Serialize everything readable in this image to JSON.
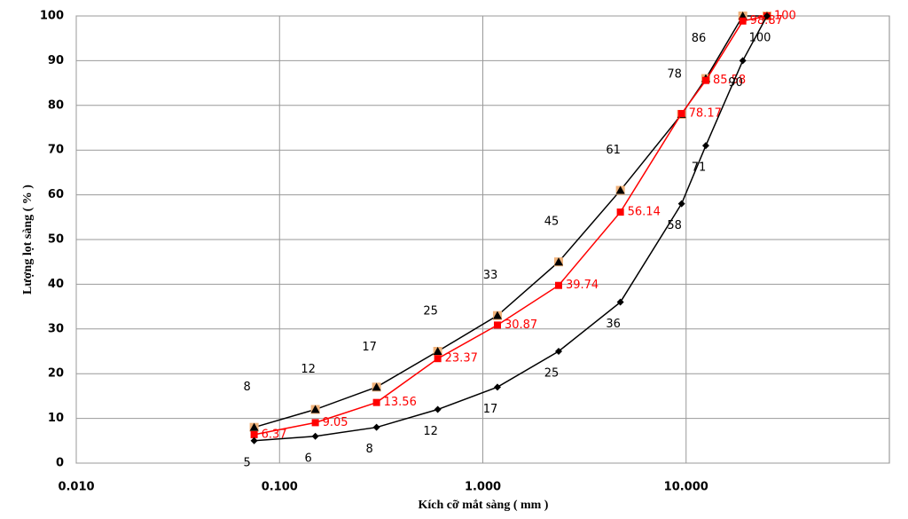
{
  "chart_data": {
    "type": "line",
    "x_label": "Kích cỡ mắt sàng ( mm )",
    "y_label": "Lượng lọt sàng ( % )",
    "x": [
      0.075,
      0.15,
      0.3,
      0.6,
      1.18,
      2.36,
      4.75,
      9.5,
      12.5,
      19,
      25
    ],
    "series": [
      {
        "color": "#000000",
        "marker": "triangle",
        "label_position": "above",
        "values": [
          8,
          12,
          17,
          25,
          33,
          45,
          61,
          78,
          86,
          100,
          100
        ]
      },
      {
        "color": "#ff0000",
        "marker": "square",
        "label_position": "right",
        "values": [
          6.37,
          9.05,
          13.56,
          23.37,
          30.87,
          39.74,
          56.14,
          78.17,
          85.58,
          98.87,
          100
        ]
      },
      {
        "color": "#000000",
        "marker": "diamond",
        "label_position": "below",
        "values": [
          5,
          6,
          8,
          12,
          17,
          25,
          36,
          58,
          71,
          90,
          100
        ]
      }
    ],
    "xlog": true,
    "xlim": [
      0.01,
      100
    ],
    "xticks": [
      {
        "value": 0.01,
        "label": "0.010"
      },
      {
        "value": 0.1,
        "label": "0.100"
      },
      {
        "value": 1,
        "label": "1.000"
      },
      {
        "value": 10,
        "label": "10.000"
      }
    ],
    "ylim": [
      0,
      100
    ],
    "yticks": [
      0,
      10,
      20,
      30,
      40,
      50,
      60,
      70,
      80,
      90,
      100
    ],
    "grid": true
  }
}
